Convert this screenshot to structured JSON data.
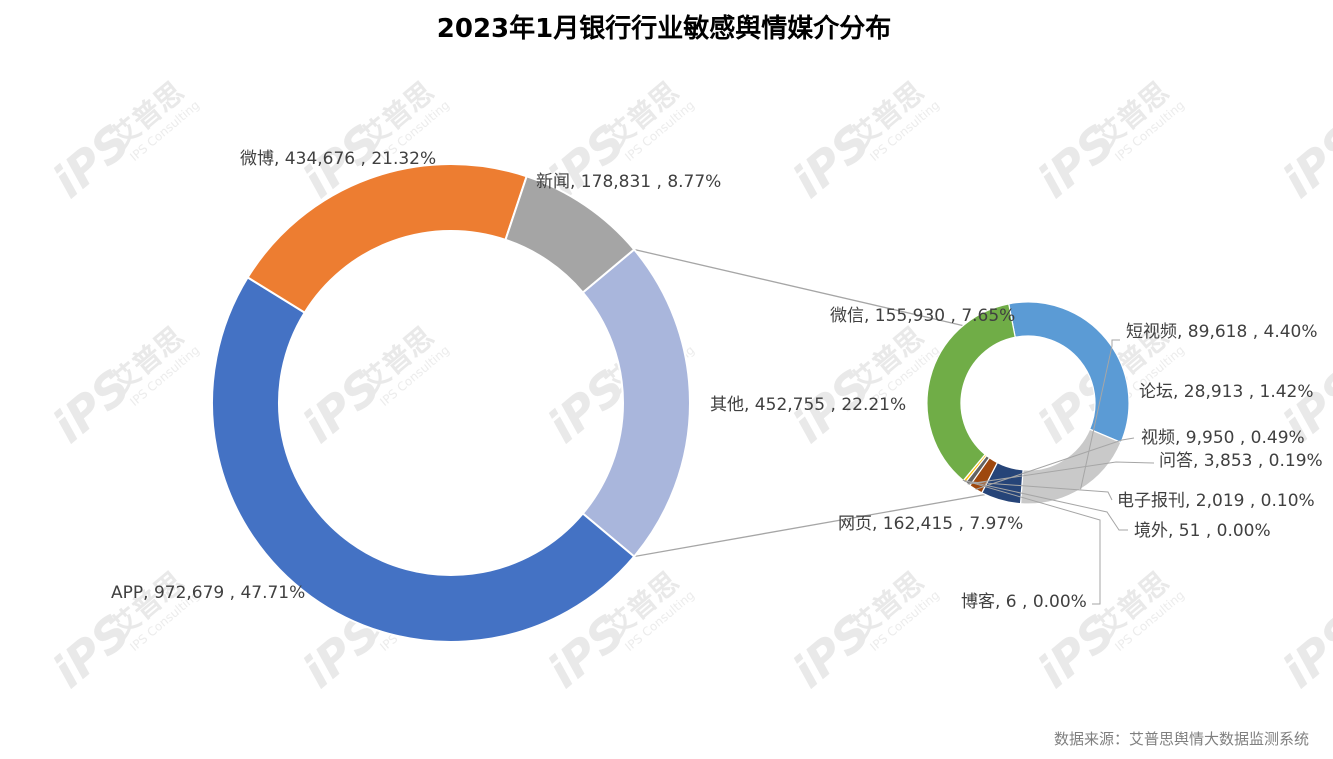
{
  "chart_data": {
    "type": "bar-of-pie doughnut",
    "title": "2023年1月银行行业敏感舆情媒介分布",
    "source": "数据来源：艾普思舆情大数据监测系统",
    "watermark": {
      "logo": "iPS",
      "name": "艾普思",
      "name_en": "IPS Consulting"
    },
    "primary": {
      "slices": [
        {
          "name": "APP",
          "value": 972679,
          "value_text": "972,679",
          "percent_text": "47.71%",
          "color": "#4472C4"
        },
        {
          "name": "微博",
          "value": 434676,
          "value_text": "434,676",
          "percent_text": "21.32%",
          "color": "#ED7D31"
        },
        {
          "name": "新闻",
          "value": 178831,
          "value_text": "178,831",
          "percent_text": "8.77%",
          "color": "#A5A5A5"
        },
        {
          "name": "其他",
          "value": 452755,
          "value_text": "452,755",
          "percent_text": "22.21%",
          "color": "#A9B6DC"
        }
      ]
    },
    "secondary": {
      "parent": "其他",
      "slices": [
        {
          "name": "微信",
          "value": 155930,
          "value_text": "155,930",
          "percent_text": "7.65%",
          "color": "#5B9BD5"
        },
        {
          "name": "短视频",
          "value": 89618,
          "value_text": "89,618",
          "percent_text": "4.40%",
          "color": "#C9C9C9"
        },
        {
          "name": "论坛",
          "value": 28913,
          "value_text": "28,913",
          "percent_text": "1.42%",
          "color": "#264478"
        },
        {
          "name": "视频",
          "value": 9950,
          "value_text": "9,950",
          "percent_text": "0.49%",
          "color": "#9E480E"
        },
        {
          "name": "问答",
          "value": 3853,
          "value_text": "3,853",
          "percent_text": "0.19%",
          "color": "#636363"
        },
        {
          "name": "电子报刊",
          "value": 2019,
          "value_text": "2,019",
          "percent_text": "0.10%",
          "color": "#FFC000"
        },
        {
          "name": "境外",
          "value": 51,
          "value_text": "51",
          "percent_text": "0.00%",
          "color": "#2F5597"
        },
        {
          "name": "博客",
          "value": 6,
          "value_text": "6",
          "percent_text": "0.00%",
          "color": "#A5A5A5"
        },
        {
          "name": "网页",
          "value": 162415,
          "value_text": "162,415",
          "percent_text": "7.97%",
          "color": "#70AD47"
        }
      ]
    }
  }
}
